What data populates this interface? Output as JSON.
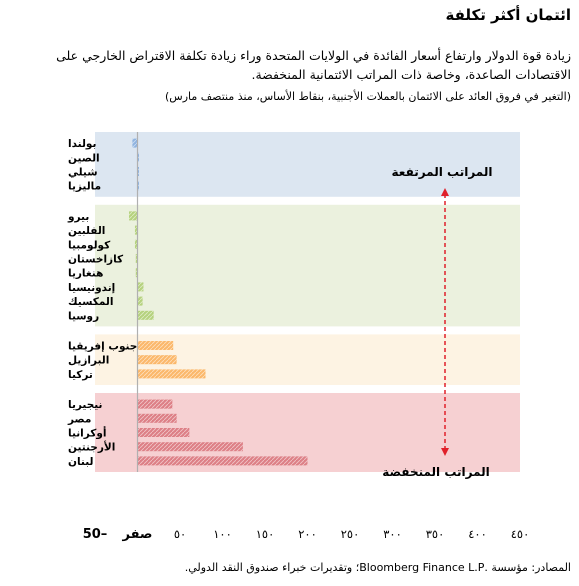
{
  "title": "ائتمان أكثر تكلفة",
  "subtitle": "زيادة قوة الدولار وارتفاع أسعار الفائدة في الولايات المتحدة وراء زيادة تكلفة الاقتراض الخارجي على الاقتصادات الصاعدة، وخاصة ذات المراتب الائتمانية المنخفضة.",
  "note": "(التغير في فروق العائد على الائتمان بالعملات الأجنبية، بنقاط الأساس، منذ منتصف مارس)",
  "source": "المصادر: مؤسسة .Bloomberg Finance L.P؛ وتقديرات خبراء صندوق النقد الدولي.",
  "chart_data": {
    "type": "bar",
    "orientation": "horizontal",
    "xlim": [
      -50,
      450
    ],
    "x_ticks": [
      -50,
      0,
      50,
      100,
      150,
      200,
      250,
      300,
      350,
      400,
      450
    ],
    "x_tick_labels": [
      "50–",
      "صفر",
      "٥٠",
      "١٠٠",
      "١٥٠",
      "٢٠٠",
      "٢٥٠",
      "٣٠٠",
      "٣٥٠",
      "٤٠٠",
      "٤٥٠"
    ],
    "groups": [
      {
        "color": "#dce6f1",
        "bar_color": "#8fb3e0",
        "items": [
          {
            "label": "بولندا",
            "value": -6
          },
          {
            "label": "الصين",
            "value": 1
          },
          {
            "label": "شيلي",
            "value": 1
          },
          {
            "label": "ماليزيا",
            "value": 1
          }
        ]
      },
      {
        "color": "#ebf1de",
        "bar_color": "#b5d27e",
        "items": [
          {
            "label": "بيرو",
            "value": -10
          },
          {
            "label": "الفلبين",
            "value": -3
          },
          {
            "label": "كولومبيا",
            "value": -3
          },
          {
            "label": "كازاخستان",
            "value": -2
          },
          {
            "label": "هنغاريا",
            "value": -2
          },
          {
            "label": "إندونيسيا",
            "value": 7
          },
          {
            "label": "المكسيك",
            "value": 6
          },
          {
            "label": "روسيا",
            "value": 19
          }
        ]
      },
      {
        "color": "#fdf3e3",
        "bar_color": "#fbb86b",
        "items": [
          {
            "label": "جنوب إفريقيا",
            "value": 42
          },
          {
            "label": "البرازيل",
            "value": 46
          },
          {
            "label": "تركيا",
            "value": 80
          }
        ]
      },
      {
        "color": "#f6d0d2",
        "bar_color": "#dd7f86",
        "items": [
          {
            "label": "نيجيريا",
            "value": 41
          },
          {
            "label": "مصر",
            "value": 46
          },
          {
            "label": "أوكرانيا",
            "value": 61
          },
          {
            "label": "الأرجنتين",
            "value": 124
          },
          {
            "label": "لبنان",
            "value": 200
          }
        ]
      }
    ],
    "annotations": {
      "high": "المراتب المرتفعة",
      "low": "المراتب المنخفضة"
    }
  }
}
